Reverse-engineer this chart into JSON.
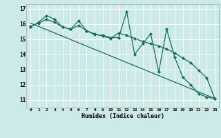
{
  "title": "",
  "xlabel": "Humidex (Indice chaleur)",
  "bg_color": "#cceae7",
  "grid_color": "#ffffff",
  "line_color": "#1a6b5a",
  "xlim": [
    -0.5,
    23.5
  ],
  "ylim": [
    10.5,
    17.3
  ],
  "yticks": [
    11,
    12,
    13,
    14,
    15,
    16,
    17
  ],
  "xticks": [
    0,
    1,
    2,
    3,
    4,
    5,
    6,
    7,
    8,
    9,
    10,
    11,
    12,
    13,
    14,
    15,
    16,
    17,
    18,
    19,
    20,
    21,
    22,
    23
  ],
  "series1_x": [
    0,
    1,
    2,
    3,
    4,
    5,
    6,
    7,
    8,
    9,
    10,
    11,
    12,
    13,
    14,
    15,
    16,
    17,
    18,
    19,
    20,
    21,
    22,
    23
  ],
  "series1_y": [
    15.8,
    16.1,
    16.55,
    16.3,
    15.8,
    15.65,
    16.2,
    15.55,
    15.3,
    15.25,
    15.1,
    15.1,
    16.8,
    14.0,
    14.7,
    15.35,
    12.85,
    15.65,
    13.8,
    12.5,
    12.0,
    11.4,
    11.2,
    11.1
  ],
  "series2_x": [
    0,
    1,
    2,
    3,
    4,
    5,
    6,
    7,
    8,
    9,
    10,
    11,
    12,
    13,
    14,
    15,
    16,
    17,
    18,
    19,
    20,
    21,
    22,
    23
  ],
  "series2_y": [
    15.85,
    16.05,
    16.3,
    16.1,
    15.8,
    15.65,
    15.9,
    15.55,
    15.35,
    15.2,
    15.05,
    15.4,
    15.25,
    15.05,
    14.85,
    14.7,
    14.55,
    14.35,
    14.1,
    13.75,
    13.45,
    12.95,
    12.45,
    11.1
  ],
  "trend_x": [
    0,
    23
  ],
  "trend_y": [
    16.05,
    11.1
  ],
  "marker": "D",
  "markersize": 2.2,
  "linewidth": 0.9
}
